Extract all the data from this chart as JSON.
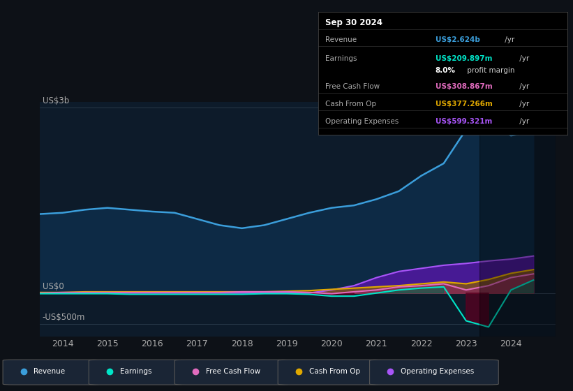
{
  "bg_color": "#0d1117",
  "plot_bg_color": "#0d1b2a",
  "title_box": {
    "date": "Sep 30 2024",
    "rows": [
      {
        "label": "Revenue",
        "value": "US$2.624b",
        "unit": " /yr",
        "value_color": "#3b9edb"
      },
      {
        "label": "Earnings",
        "value": "US$209.897m",
        "unit": " /yr",
        "value_color": "#00e5c8"
      },
      {
        "label": "",
        "value": "8.0%",
        "unit": " profit margin",
        "value_color": "#ffffff"
      },
      {
        "label": "Free Cash Flow",
        "value": "US$308.867m",
        "unit": " /yr",
        "value_color": "#e06bbd"
      },
      {
        "label": "Cash From Op",
        "value": "US$377.266m",
        "unit": " /yr",
        "value_color": "#e0a800"
      },
      {
        "label": "Operating Expenses",
        "value": "US$599.321m",
        "unit": " /yr",
        "value_color": "#a855f7"
      }
    ]
  },
  "ylabel_top": "US$3b",
  "ylabel_zero": "US$0",
  "ylabel_neg": "-US$500m",
  "legend": [
    {
      "label": "Revenue",
      "color": "#3b9edb"
    },
    {
      "label": "Earnings",
      "color": "#00e5c8"
    },
    {
      "label": "Free Cash Flow",
      "color": "#e06bbd"
    },
    {
      "label": "Cash From Op",
      "color": "#e0a800"
    },
    {
      "label": "Operating Expenses",
      "color": "#a855f7"
    }
  ],
  "t": [
    2013.5,
    2014.0,
    2014.5,
    2015.0,
    2015.5,
    2016.0,
    2016.5,
    2017.0,
    2017.5,
    2018.0,
    2018.5,
    2019.0,
    2019.5,
    2020.0,
    2020.5,
    2021.0,
    2021.5,
    2022.0,
    2022.5,
    2023.0,
    2023.5,
    2024.0,
    2024.5
  ],
  "revenue_y": [
    1.28,
    1.3,
    1.35,
    1.38,
    1.35,
    1.32,
    1.3,
    1.2,
    1.1,
    1.05,
    1.1,
    1.2,
    1.3,
    1.38,
    1.42,
    1.52,
    1.65,
    1.9,
    2.1,
    2.65,
    2.8,
    2.55,
    2.62
  ],
  "earnings_y": [
    -0.01,
    -0.01,
    -0.01,
    -0.01,
    -0.02,
    -0.02,
    -0.02,
    -0.02,
    -0.02,
    -0.02,
    -0.01,
    -0.01,
    -0.02,
    -0.05,
    -0.05,
    0.0,
    0.05,
    0.08,
    0.1,
    -0.45,
    -0.55,
    0.05,
    0.21
  ],
  "fcf_y": [
    0.0,
    0.01,
    0.01,
    0.01,
    0.01,
    0.01,
    0.01,
    0.01,
    0.01,
    0.02,
    0.02,
    0.02,
    0.01,
    -0.01,
    0.02,
    0.05,
    0.1,
    0.12,
    0.15,
    0.05,
    0.12,
    0.25,
    0.31
  ],
  "cashop_y": [
    0.01,
    0.01,
    0.02,
    0.02,
    0.02,
    0.02,
    0.02,
    0.02,
    0.02,
    0.02,
    0.02,
    0.03,
    0.04,
    0.06,
    0.08,
    0.1,
    0.12,
    0.15,
    0.18,
    0.15,
    0.22,
    0.32,
    0.38
  ],
  "opex_y": [
    0.0,
    0.0,
    0.0,
    0.0,
    0.0,
    0.0,
    0.0,
    0.0,
    0.0,
    0.0,
    0.0,
    0.0,
    0.0,
    0.05,
    0.12,
    0.25,
    0.35,
    0.4,
    0.45,
    0.48,
    0.52,
    0.55,
    0.6
  ],
  "xlim": [
    2013.5,
    2025.0
  ],
  "ylim": [
    -0.7,
    3.1
  ],
  "future_start": 2023.3
}
